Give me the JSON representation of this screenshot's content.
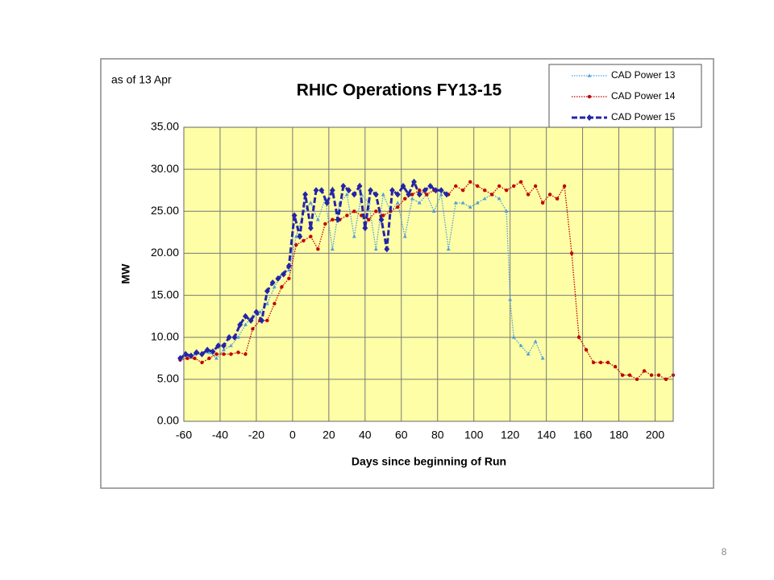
{
  "chart_data": {
    "type": "line",
    "title": "RHIC Operations FY13-15",
    "annotation": "as of 13 Apr",
    "x_label": "Days since beginning of Run",
    "y_label": "MW",
    "page_number": "8",
    "xlim": [
      -60,
      210
    ],
    "xticks": [
      -60,
      -40,
      -20,
      0,
      20,
      40,
      60,
      80,
      100,
      120,
      140,
      160,
      180,
      200
    ],
    "ylim": [
      0,
      35
    ],
    "yticks": [
      {
        "value": 0,
        "label": "0.00"
      },
      {
        "value": 5,
        "label": "5.00"
      },
      {
        "value": 10,
        "label": "10.00"
      },
      {
        "value": 15,
        "label": "15.00"
      },
      {
        "value": 20,
        "label": "20.00"
      },
      {
        "value": 25,
        "label": "25.00"
      },
      {
        "value": 30,
        "label": "30.00"
      },
      {
        "value": 35,
        "label": "35.00"
      }
    ],
    "grid": true,
    "legend": "top-right",
    "series": [
      {
        "name": "CAD Power 13",
        "color": "#4f9fd8",
        "dash": "dotted",
        "marker": "triangle",
        "x": [
          -62,
          -58,
          -54,
          -50,
          -46,
          -42,
          -38,
          -34,
          -30,
          -26,
          -22,
          -18,
          -14,
          -10,
          -6,
          -2,
          2,
          6,
          10,
          14,
          18,
          22,
          26,
          30,
          34,
          38,
          42,
          46,
          50,
          54,
          58,
          62,
          66,
          70,
          74,
          78,
          82,
          86,
          90,
          94,
          98,
          102,
          106,
          110,
          114,
          118,
          120,
          122,
          126,
          130,
          134,
          138
        ],
        "values": [
          7.5,
          7.8,
          8,
          8,
          8.2,
          7.5,
          8.5,
          9,
          10,
          11.5,
          12.5,
          13,
          14,
          16,
          17.5,
          18,
          22,
          25,
          26,
          24,
          26.5,
          20.5,
          26,
          27,
          22,
          27,
          26,
          20.5,
          27,
          25,
          26,
          22,
          26.5,
          26,
          27,
          25,
          27,
          20.5,
          26,
          26,
          25.5,
          26,
          26.5,
          27,
          26.5,
          25,
          14.5,
          10,
          9,
          8,
          9.5,
          7.5
        ]
      },
      {
        "name": "CAD Power 14",
        "color": "#c00000",
        "dash": "dotted",
        "marker": "circle",
        "x": [
          -62,
          -58,
          -54,
          -50,
          -46,
          -42,
          -38,
          -34,
          -30,
          -26,
          -22,
          -18,
          -14,
          -10,
          -6,
          -2,
          2,
          6,
          10,
          14,
          18,
          22,
          26,
          30,
          34,
          38,
          42,
          46,
          50,
          54,
          58,
          62,
          66,
          70,
          74,
          78,
          82,
          86,
          90,
          94,
          98,
          102,
          106,
          110,
          114,
          118,
          122,
          126,
          130,
          134,
          138,
          142,
          146,
          150,
          154,
          158,
          162,
          166,
          170,
          174,
          178,
          182,
          186,
          190,
          194,
          198,
          202,
          206,
          210
        ],
        "values": [
          7.3,
          7.5,
          7.5,
          7,
          7.5,
          8,
          8,
          8,
          8.2,
          8,
          11,
          12,
          12,
          14,
          16,
          17,
          21,
          21.5,
          22,
          20.5,
          23.5,
          24,
          24,
          24.5,
          25,
          24.5,
          24,
          25,
          24.5,
          25,
          25.5,
          26.5,
          27,
          27.5,
          27,
          27.5,
          27.5,
          27,
          28,
          27.5,
          28.5,
          28,
          27.5,
          27,
          28,
          27.5,
          28,
          28.5,
          27,
          28,
          26,
          27,
          26.5,
          28,
          20,
          10,
          8.5,
          7,
          7,
          7,
          6.5,
          5.5,
          5.5,
          5,
          6,
          5.5,
          5.5,
          5,
          5.5
        ]
      },
      {
        "name": "CAD Power 15",
        "color": "#2424a8",
        "dash": "dashed",
        "marker": "diamond",
        "x": [
          -62,
          -59,
          -56,
          -53,
          -50,
          -47,
          -44,
          -41,
          -38,
          -35,
          -32,
          -29,
          -26,
          -23,
          -20,
          -17,
          -14,
          -11,
          -8,
          -5,
          -2,
          1,
          4,
          7,
          10,
          13,
          16,
          19,
          22,
          25,
          28,
          31,
          34,
          37,
          40,
          43,
          46,
          49,
          52,
          55,
          58,
          61,
          64,
          67,
          70,
          73,
          76,
          79,
          82,
          85
        ],
        "values": [
          7.5,
          8,
          7.8,
          8.2,
          8,
          8.5,
          8.3,
          9,
          9,
          10,
          10,
          11.5,
          12.5,
          12,
          13,
          12,
          15.5,
          16.5,
          17,
          17.5,
          18.5,
          24.5,
          22,
          27,
          23,
          27.5,
          27.5,
          26,
          27.5,
          24,
          28,
          27.5,
          27,
          28,
          23,
          27.5,
          27,
          24,
          20.5,
          27.5,
          27,
          28,
          27,
          28.5,
          27,
          27.5,
          28,
          27.5,
          27.5,
          27
        ]
      }
    ]
  }
}
